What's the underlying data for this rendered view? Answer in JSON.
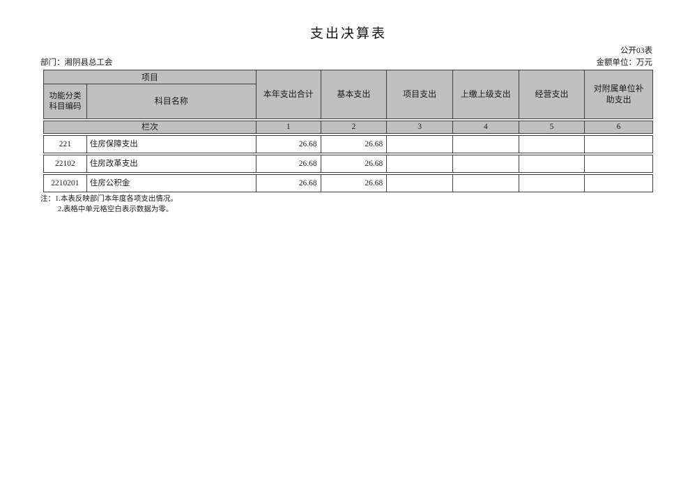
{
  "page": {
    "title": "支出决算表",
    "table_code": "公开03表",
    "department_label": "部门：湘阴县总工会",
    "unit_label": "金额单位：万元"
  },
  "table": {
    "project_header": "项目",
    "code_header": "功能分类科目编码",
    "name_header": "科目名称",
    "columns": [
      "本年支出合计",
      "基本支出",
      "项目支出",
      "上缴上级支出",
      "经营支出",
      "对附属单位补助支出"
    ],
    "lanci_label": "栏次",
    "column_numbers": [
      "1",
      "2",
      "3",
      "4",
      "5",
      "6"
    ],
    "rows": [
      {
        "code": "221",
        "name": "住房保障支出",
        "values": [
          "26.68",
          "26.68",
          "",
          "",
          "",
          ""
        ]
      },
      {
        "code": "22102",
        "name": "住房改革支出",
        "values": [
          "26.68",
          "26.68",
          "",
          "",
          "",
          ""
        ]
      },
      {
        "code": "2210201",
        "name": "住房公积金",
        "values": [
          "26.68",
          "26.68",
          "",
          "",
          "",
          ""
        ]
      }
    ]
  },
  "notes": {
    "prefix": "注：",
    "line1": "1.本表反映部门本年度各项支出情况。",
    "line2": "2.表格中单元格空白表示数据为零。"
  },
  "colors": {
    "header_bg": "#c0c0c0",
    "border": "#3c3c3c",
    "page_bg": "#ffffff"
  }
}
